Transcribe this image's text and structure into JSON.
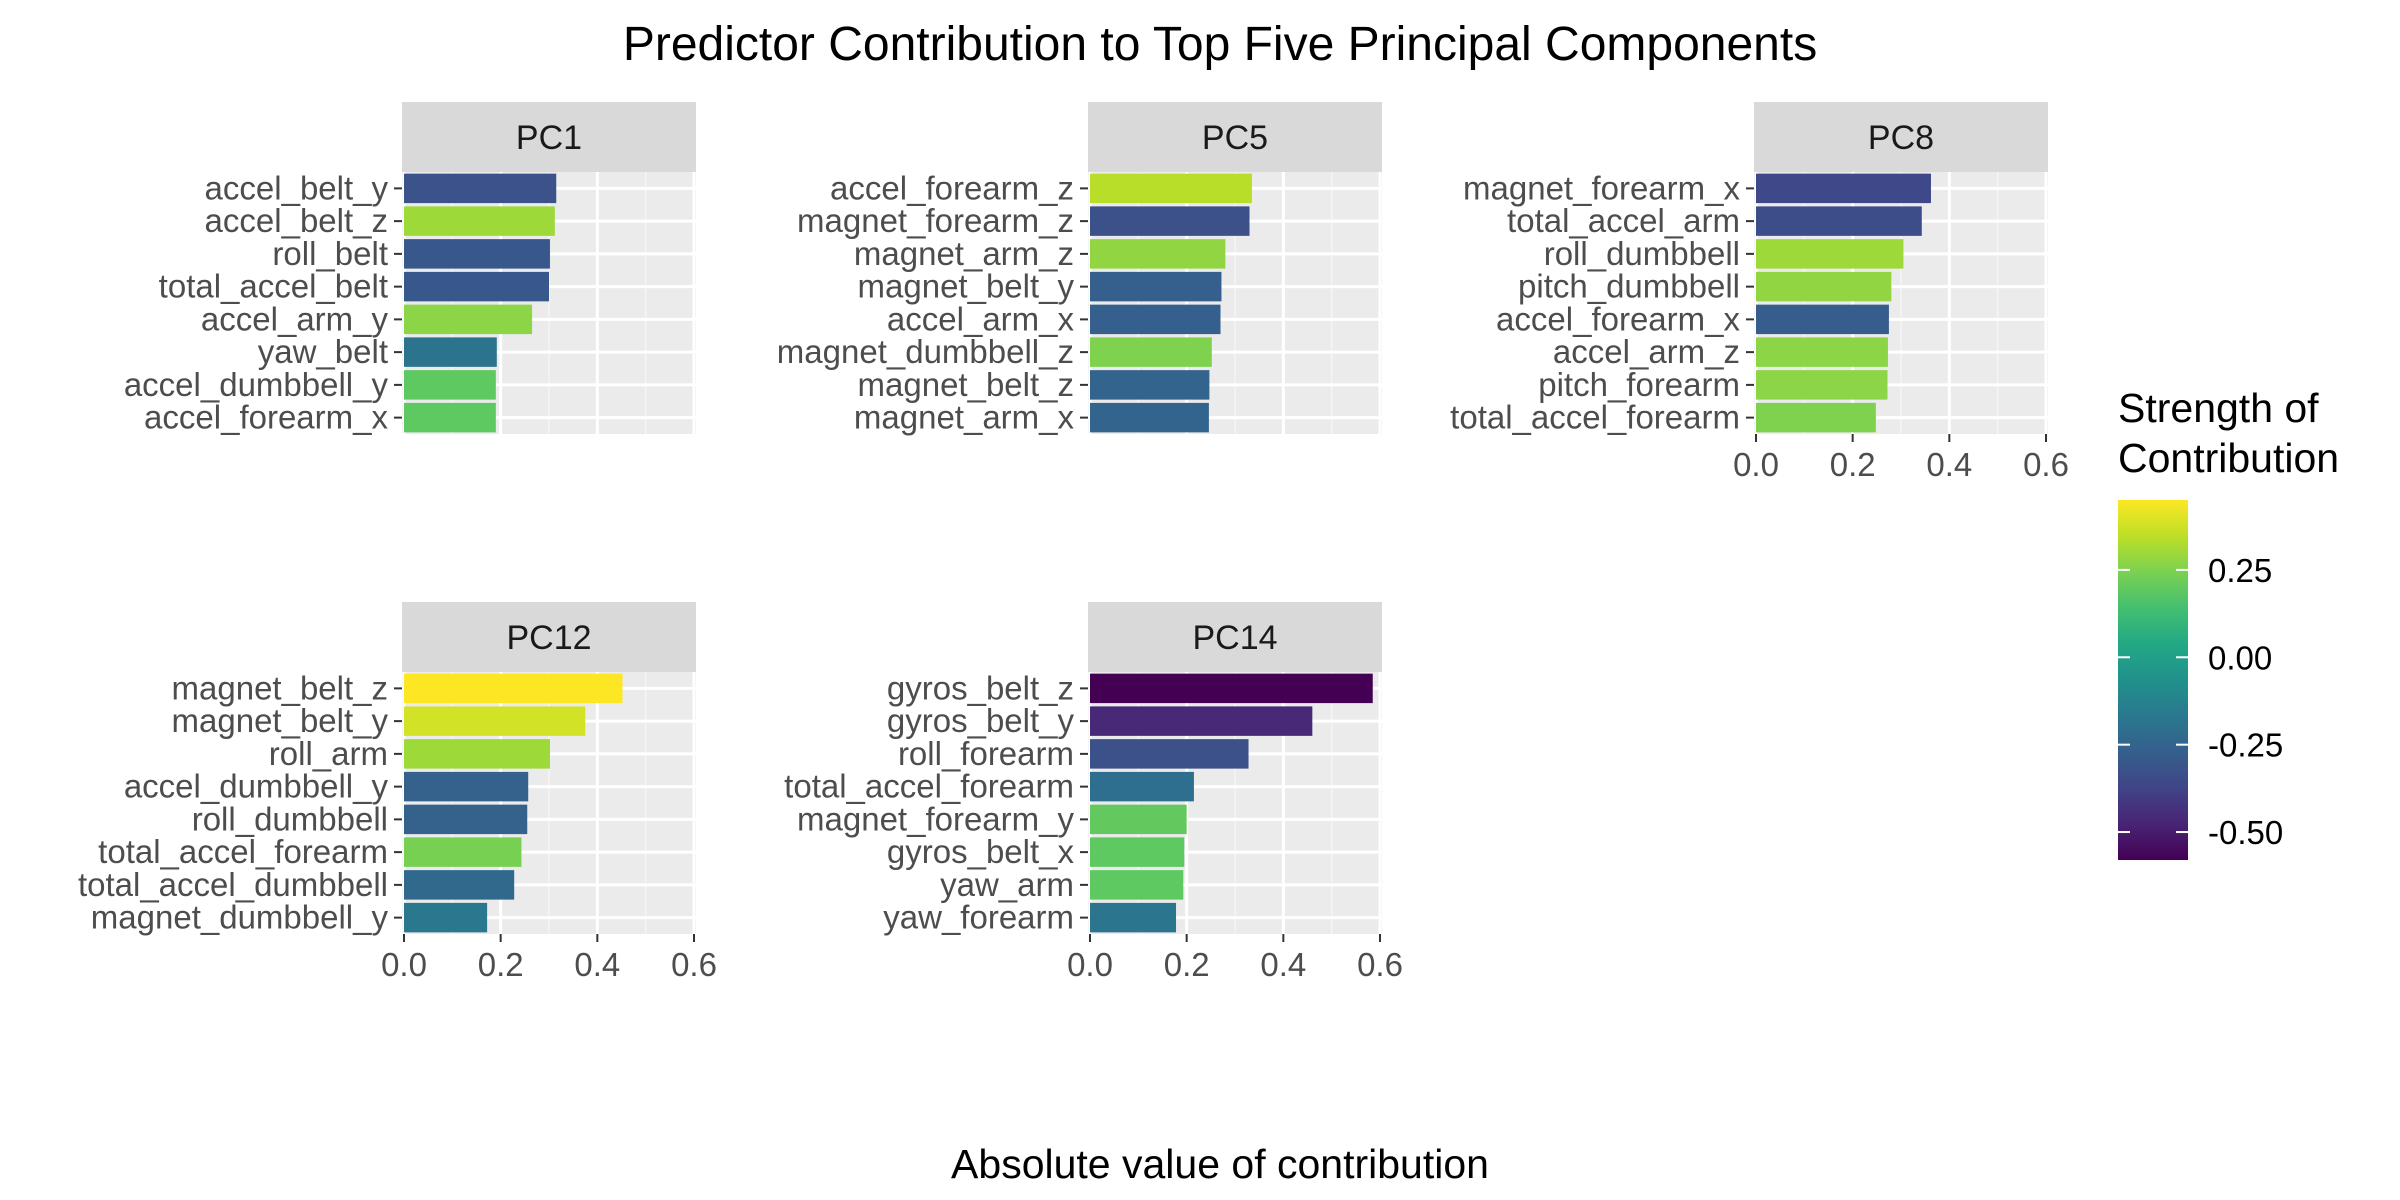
{
  "chart_data": {
    "type": "bar",
    "orientation": "horizontal",
    "title": "Predictor Contribution  to  Top Five Principal Components",
    "xlabel": "Absolute value of contribution",
    "ylabel": "",
    "xlim": [
      0,
      0.6
    ],
    "x_ticks": [
      0,
      0.2,
      0.4,
      0.6
    ],
    "x_tick_labels": [
      "0.0",
      "0.2",
      "0.4",
      "0.6"
    ],
    "grid": true,
    "legend": {
      "title_lines": [
        "Strength of",
        "Contribution"
      ],
      "placement": "right",
      "type": "colorbar",
      "range": [
        -0.58,
        0.45
      ],
      "ticks": [
        0.25,
        0.0,
        -0.25,
        -0.5
      ],
      "tick_labels": [
        "0.25",
        "0.00",
        "-0.25",
        "-0.50"
      ],
      "palette": "viridis"
    },
    "panels": [
      {
        "name": "PC1",
        "categories": [
          "accel_belt_y",
          "accel_belt_z",
          "roll_belt",
          "total_accel_belt",
          "accel_arm_y",
          "yaw_belt",
          "accel_dumbbell_y",
          "accel_forearm_x"
        ],
        "values": [
          0.315,
          0.312,
          0.302,
          0.3,
          0.265,
          0.192,
          0.19,
          0.19
        ],
        "strength": [
          -0.32,
          0.3,
          -0.3,
          -0.3,
          0.27,
          -0.19,
          0.19,
          0.19
        ]
      },
      {
        "name": "PC5",
        "categories": [
          "accel_forearm_z",
          "magnet_forearm_z",
          "magnet_arm_z",
          "magnet_belt_y",
          "accel_arm_x",
          "magnet_dumbbell_z",
          "magnet_belt_z",
          "magnet_arm_x"
        ],
        "values": [
          0.335,
          0.33,
          0.28,
          0.272,
          0.27,
          0.252,
          0.247,
          0.246
        ],
        "strength": [
          0.34,
          -0.33,
          0.28,
          -0.27,
          -0.27,
          0.25,
          -0.25,
          -0.25
        ]
      },
      {
        "name": "PC8",
        "categories": [
          "magnet_forearm_x",
          "total_accel_arm",
          "roll_dumbbell",
          "pitch_dumbbell",
          "accel_forearm_x",
          "accel_arm_z",
          "pitch_forearm",
          "total_accel_forearm"
        ],
        "values": [
          0.362,
          0.343,
          0.305,
          0.28,
          0.275,
          0.273,
          0.272,
          0.248
        ],
        "strength": [
          -0.36,
          -0.34,
          0.3,
          0.28,
          -0.28,
          0.27,
          0.27,
          0.25
        ]
      },
      {
        "name": "PC12",
        "categories": [
          "magnet_belt_z",
          "magnet_belt_y",
          "roll_arm",
          "accel_dumbbell_y",
          "roll_dumbbell",
          "total_accel_forearm",
          "total_accel_dumbbell",
          "magnet_dumbbell_y"
        ],
        "values": [
          0.452,
          0.375,
          0.302,
          0.257,
          0.255,
          0.243,
          0.228,
          0.172
        ],
        "strength": [
          0.45,
          0.38,
          0.3,
          -0.26,
          -0.26,
          0.24,
          -0.23,
          -0.17
        ]
      },
      {
        "name": "PC14",
        "categories": [
          "gyros_belt_z",
          "gyros_belt_y",
          "roll_forearm",
          "total_accel_forearm",
          "magnet_forearm_y",
          "gyros_belt_x",
          "yaw_arm",
          "yaw_forearm"
        ],
        "values": [
          0.585,
          0.46,
          0.328,
          0.215,
          0.2,
          0.195,
          0.193,
          0.178
        ],
        "strength": [
          -0.58,
          -0.46,
          -0.33,
          -0.21,
          0.2,
          0.19,
          0.19,
          -0.18
        ]
      }
    ]
  }
}
